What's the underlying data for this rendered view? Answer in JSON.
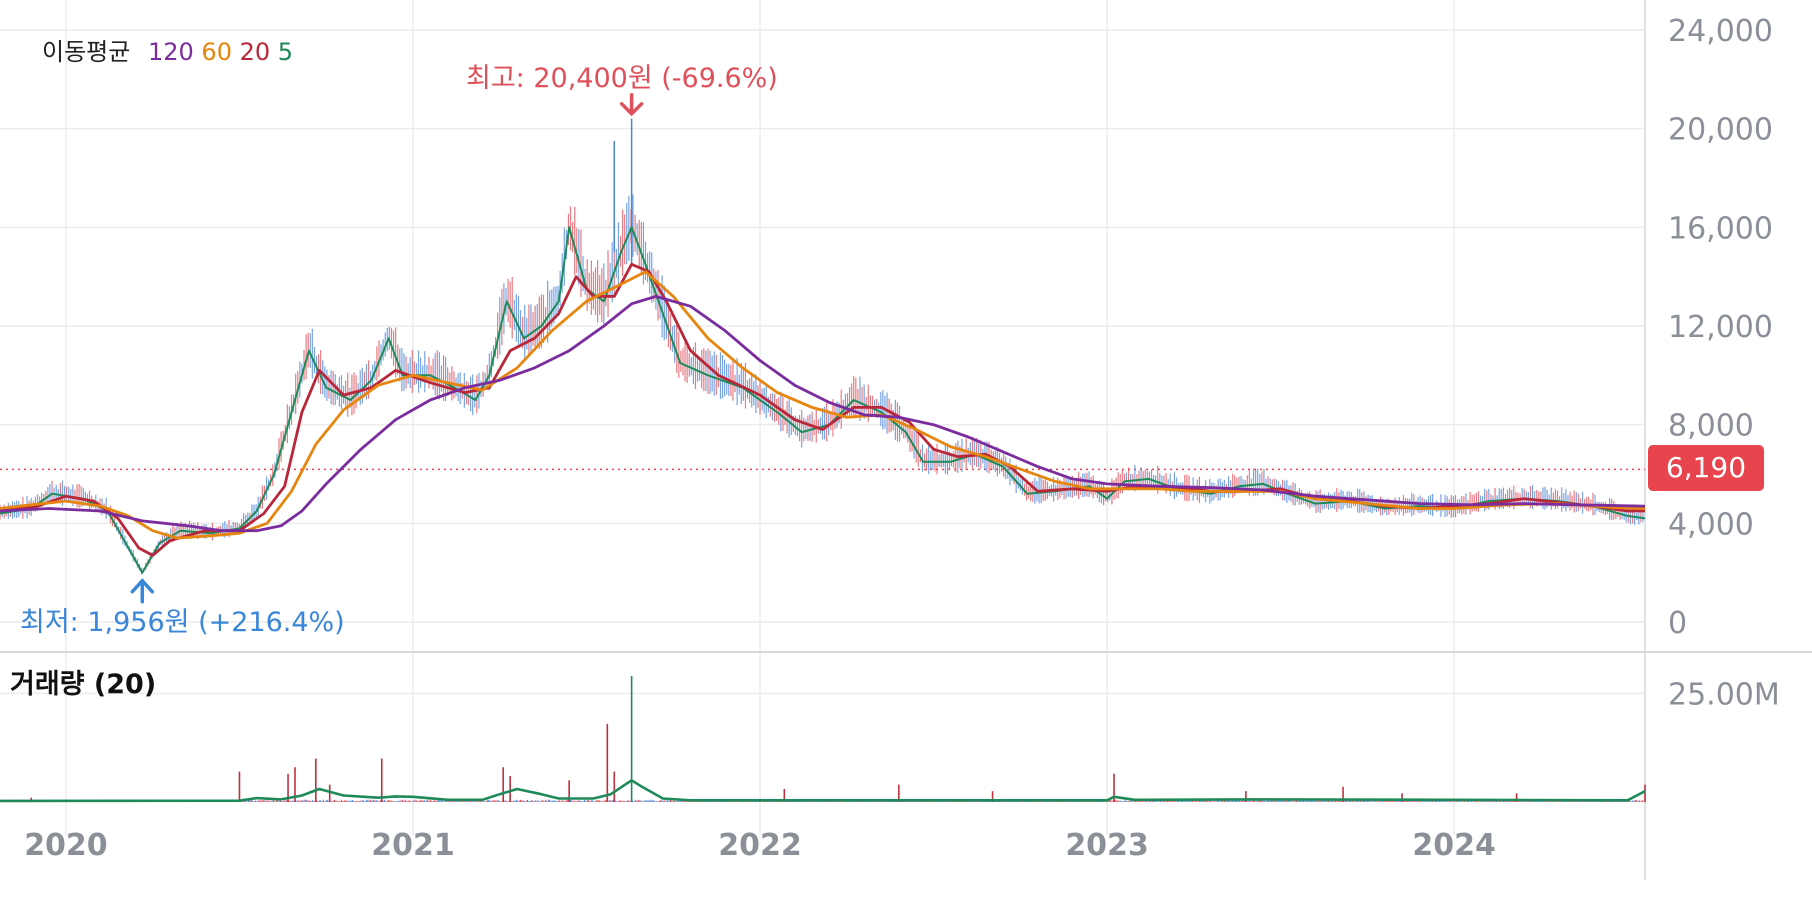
{
  "chart_data": {
    "type": "line",
    "legend": {
      "label": "이동평균",
      "items": [
        {
          "text": "120",
          "color": "#7b2d9e"
        },
        {
          "text": "60",
          "color": "#e6860f"
        },
        {
          "text": "20",
          "color": "#b8283a"
        },
        {
          "text": "5",
          "color": "#1e8a5a"
        }
      ]
    },
    "x_ticks": [
      "2020",
      "2021",
      "2022",
      "2023",
      "2024"
    ],
    "x_tick_values": [
      2020.0,
      2021.0,
      2022.0,
      2023.0,
      2024.0
    ],
    "xlim": [
      2019.81,
      2024.55
    ],
    "price_axis": {
      "ylim": [
        0,
        24000
      ],
      "ticks": [
        0,
        4000,
        8000,
        12000,
        16000,
        20000,
        24000
      ],
      "tick_labels": [
        "0",
        "4,000",
        "8,000",
        "12,000",
        "16,000",
        "20,000",
        "24,000"
      ]
    },
    "volume_axis": {
      "title": "거래량 (20)",
      "tick_labels": [
        "25.00M"
      ],
      "ticks": [
        25000000
      ],
      "ylim": [
        0,
        35000000
      ]
    },
    "current_price": {
      "value": 6190,
      "label": "6,190",
      "color": "#e8444e"
    },
    "annotations": {
      "high": {
        "text": "최고: 20,400원 (-69.6%)",
        "x": 2021.63,
        "y": 20400,
        "color": "#e0505a"
      },
      "low": {
        "text": "최저: 1,956원 (+216.4%)",
        "x": 2020.22,
        "y": 1956,
        "color": "#3a86d8"
      }
    },
    "series": [
      {
        "name": "5",
        "color": "#1e8a5a",
        "points": [
          [
            2019.81,
            4400
          ],
          [
            2019.9,
            4600
          ],
          [
            2019.96,
            5200
          ],
          [
            2020.05,
            5000
          ],
          [
            2020.12,
            4500
          ],
          [
            2020.18,
            3000
          ],
          [
            2020.22,
            2000
          ],
          [
            2020.27,
            3200
          ],
          [
            2020.33,
            3700
          ],
          [
            2020.42,
            3600
          ],
          [
            2020.5,
            3800
          ],
          [
            2020.55,
            4500
          ],
          [
            2020.6,
            6000
          ],
          [
            2020.65,
            8500
          ],
          [
            2020.7,
            11000
          ],
          [
            2020.75,
            9500
          ],
          [
            2020.82,
            9000
          ],
          [
            2020.88,
            9800
          ],
          [
            2020.93,
            11500
          ],
          [
            2020.97,
            10000
          ],
          [
            2021.05,
            10000
          ],
          [
            2021.12,
            9500
          ],
          [
            2021.18,
            9000
          ],
          [
            2021.22,
            10000
          ],
          [
            2021.27,
            13000
          ],
          [
            2021.32,
            11500
          ],
          [
            2021.37,
            12000
          ],
          [
            2021.42,
            13000
          ],
          [
            2021.45,
            16000
          ],
          [
            2021.5,
            13500
          ],
          [
            2021.55,
            13000
          ],
          [
            2021.6,
            15000
          ],
          [
            2021.63,
            16000
          ],
          [
            2021.67,
            14500
          ],
          [
            2021.72,
            12500
          ],
          [
            2021.77,
            10500
          ],
          [
            2021.85,
            10000
          ],
          [
            2021.95,
            9500
          ],
          [
            2022.05,
            8500
          ],
          [
            2022.12,
            7700
          ],
          [
            2022.2,
            8000
          ],
          [
            2022.27,
            9000
          ],
          [
            2022.35,
            8500
          ],
          [
            2022.42,
            7700
          ],
          [
            2022.47,
            6500
          ],
          [
            2022.55,
            6500
          ],
          [
            2022.62,
            6800
          ],
          [
            2022.7,
            6300
          ],
          [
            2022.77,
            5200
          ],
          [
            2022.85,
            5300
          ],
          [
            2022.95,
            5500
          ],
          [
            2023.0,
            5000
          ],
          [
            2023.05,
            5700
          ],
          [
            2023.12,
            5800
          ],
          [
            2023.2,
            5400
          ],
          [
            2023.3,
            5200
          ],
          [
            2023.38,
            5500
          ],
          [
            2023.45,
            5600
          ],
          [
            2023.52,
            5200
          ],
          [
            2023.6,
            4800
          ],
          [
            2023.7,
            4900
          ],
          [
            2023.8,
            4600
          ],
          [
            2023.9,
            4700
          ],
          [
            2024.0,
            4600
          ],
          [
            2024.1,
            4900
          ],
          [
            2024.2,
            5000
          ],
          [
            2024.3,
            4900
          ],
          [
            2024.4,
            4700
          ],
          [
            2024.5,
            4300
          ],
          [
            2024.55,
            4200
          ]
        ]
      },
      {
        "name": "20",
        "color": "#b8283a",
        "points": [
          [
            2019.81,
            4500
          ],
          [
            2019.92,
            4700
          ],
          [
            2020.0,
            5100
          ],
          [
            2020.08,
            4900
          ],
          [
            2020.15,
            4200
          ],
          [
            2020.21,
            3000
          ],
          [
            2020.25,
            2700
          ],
          [
            2020.3,
            3300
          ],
          [
            2020.4,
            3700
          ],
          [
            2020.5,
            3700
          ],
          [
            2020.57,
            4400
          ],
          [
            2020.63,
            5500
          ],
          [
            2020.68,
            8500
          ],
          [
            2020.73,
            10200
          ],
          [
            2020.8,
            9200
          ],
          [
            2020.88,
            9500
          ],
          [
            2020.95,
            10200
          ],
          [
            2021.05,
            9700
          ],
          [
            2021.15,
            9300
          ],
          [
            2021.22,
            9500
          ],
          [
            2021.28,
            11000
          ],
          [
            2021.35,
            11500
          ],
          [
            2021.42,
            12500
          ],
          [
            2021.47,
            14000
          ],
          [
            2021.52,
            13200
          ],
          [
            2021.58,
            13200
          ],
          [
            2021.63,
            14500
          ],
          [
            2021.68,
            14200
          ],
          [
            2021.73,
            13000
          ],
          [
            2021.8,
            11000
          ],
          [
            2021.88,
            10000
          ],
          [
            2022.0,
            9200
          ],
          [
            2022.1,
            8200
          ],
          [
            2022.18,
            7800
          ],
          [
            2022.27,
            8700
          ],
          [
            2022.35,
            8700
          ],
          [
            2022.43,
            8100
          ],
          [
            2022.5,
            7000
          ],
          [
            2022.57,
            6700
          ],
          [
            2022.65,
            6800
          ],
          [
            2022.72,
            6300
          ],
          [
            2022.8,
            5300
          ],
          [
            2022.9,
            5400
          ],
          [
            2023.0,
            5300
          ],
          [
            2023.08,
            5500
          ],
          [
            2023.18,
            5500
          ],
          [
            2023.3,
            5300
          ],
          [
            2023.4,
            5300
          ],
          [
            2023.5,
            5400
          ],
          [
            2023.6,
            5000
          ],
          [
            2023.7,
            4900
          ],
          [
            2023.8,
            4700
          ],
          [
            2023.9,
            4600
          ],
          [
            2024.0,
            4700
          ],
          [
            2024.1,
            4800
          ],
          [
            2024.2,
            5000
          ],
          [
            2024.3,
            4850
          ],
          [
            2024.4,
            4700
          ],
          [
            2024.5,
            4500
          ],
          [
            2024.55,
            4500
          ]
        ]
      },
      {
        "name": "60",
        "color": "#e6860f",
        "points": [
          [
            2019.81,
            4600
          ],
          [
            2019.9,
            4750
          ],
          [
            2020.0,
            4900
          ],
          [
            2020.1,
            4700
          ],
          [
            2020.18,
            4300
          ],
          [
            2020.25,
            3700
          ],
          [
            2020.32,
            3400
          ],
          [
            2020.42,
            3500
          ],
          [
            2020.5,
            3600
          ],
          [
            2020.58,
            4000
          ],
          [
            2020.65,
            5300
          ],
          [
            2020.72,
            7200
          ],
          [
            2020.8,
            8600
          ],
          [
            2020.9,
            9600
          ],
          [
            2021.0,
            10000
          ],
          [
            2021.1,
            9700
          ],
          [
            2021.2,
            9400
          ],
          [
            2021.3,
            10300
          ],
          [
            2021.4,
            11800
          ],
          [
            2021.5,
            13000
          ],
          [
            2021.6,
            13700
          ],
          [
            2021.67,
            14200
          ],
          [
            2021.75,
            13200
          ],
          [
            2021.85,
            11500
          ],
          [
            2021.95,
            10300
          ],
          [
            2022.05,
            9300
          ],
          [
            2022.15,
            8700
          ],
          [
            2022.25,
            8300
          ],
          [
            2022.35,
            8400
          ],
          [
            2022.45,
            7800
          ],
          [
            2022.55,
            7100
          ],
          [
            2022.65,
            6700
          ],
          [
            2022.75,
            6200
          ],
          [
            2022.85,
            5700
          ],
          [
            2022.95,
            5400
          ],
          [
            2023.05,
            5400
          ],
          [
            2023.15,
            5400
          ],
          [
            2023.25,
            5300
          ],
          [
            2023.4,
            5300
          ],
          [
            2023.5,
            5300
          ],
          [
            2023.6,
            5000
          ],
          [
            2023.75,
            4800
          ],
          [
            2023.9,
            4600
          ],
          [
            2024.0,
            4600
          ],
          [
            2024.15,
            4750
          ],
          [
            2024.3,
            4800
          ],
          [
            2024.45,
            4650
          ],
          [
            2024.55,
            4600
          ]
        ]
      },
      {
        "name": "120",
        "color": "#7b2d9e",
        "points": [
          [
            2019.81,
            4500
          ],
          [
            2019.95,
            4600
          ],
          [
            2020.1,
            4500
          ],
          [
            2020.22,
            4100
          ],
          [
            2020.35,
            3900
          ],
          [
            2020.45,
            3700
          ],
          [
            2020.55,
            3700
          ],
          [
            2020.62,
            3900
          ],
          [
            2020.68,
            4500
          ],
          [
            2020.75,
            5600
          ],
          [
            2020.85,
            7000
          ],
          [
            2020.95,
            8200
          ],
          [
            2021.05,
            9000
          ],
          [
            2021.15,
            9500
          ],
          [
            2021.25,
            9800
          ],
          [
            2021.35,
            10300
          ],
          [
            2021.45,
            11000
          ],
          [
            2021.55,
            12000
          ],
          [
            2021.63,
            12900
          ],
          [
            2021.7,
            13200
          ],
          [
            2021.8,
            12800
          ],
          [
            2021.9,
            11800
          ],
          [
            2022.0,
            10600
          ],
          [
            2022.1,
            9600
          ],
          [
            2022.2,
            8900
          ],
          [
            2022.3,
            8400
          ],
          [
            2022.4,
            8300
          ],
          [
            2022.5,
            8000
          ],
          [
            2022.6,
            7500
          ],
          [
            2022.7,
            6900
          ],
          [
            2022.8,
            6300
          ],
          [
            2022.9,
            5800
          ],
          [
            2023.0,
            5600
          ],
          [
            2023.15,
            5500
          ],
          [
            2023.3,
            5450
          ],
          [
            2023.45,
            5350
          ],
          [
            2023.6,
            5100
          ],
          [
            2023.75,
            4950
          ],
          [
            2023.9,
            4800
          ],
          [
            2024.05,
            4750
          ],
          [
            2024.2,
            4800
          ],
          [
            2024.35,
            4750
          ],
          [
            2024.55,
            4700
          ]
        ]
      }
    ],
    "volume": {
      "color": "#1e8a5a",
      "avg_points": [
        [
          2019.81,
          0.25
        ],
        [
          2020.5,
          0.3
        ],
        [
          2020.55,
          0.9
        ],
        [
          2020.62,
          0.6
        ],
        [
          2020.68,
          1.5
        ],
        [
          2020.73,
          3.0
        ],
        [
          2020.8,
          1.5
        ],
        [
          2020.9,
          1.0
        ],
        [
          2020.95,
          1.3
        ],
        [
          2021.0,
          1.2
        ],
        [
          2021.1,
          0.5
        ],
        [
          2021.2,
          0.5
        ],
        [
          2021.25,
          1.8
        ],
        [
          2021.3,
          3.0
        ],
        [
          2021.37,
          1.8
        ],
        [
          2021.42,
          0.8
        ],
        [
          2021.52,
          0.8
        ],
        [
          2021.57,
          1.8
        ],
        [
          2021.63,
          5.0
        ],
        [
          2021.66,
          3.5
        ],
        [
          2021.72,
          0.8
        ],
        [
          2021.8,
          0.4
        ],
        [
          2023.0,
          0.4
        ],
        [
          2023.02,
          1.2
        ],
        [
          2023.08,
          0.5
        ],
        [
          2023.4,
          0.6
        ],
        [
          2024.0,
          0.5
        ],
        [
          2024.5,
          0.4
        ],
        [
          2024.55,
          2.5
        ]
      ],
      "spikes_millions": [
        [
          2019.9,
          1.0
        ],
        [
          2020.5,
          7.0
        ],
        [
          2020.64,
          6.5
        ],
        [
          2020.66,
          8.0
        ],
        [
          2020.72,
          10.0
        ],
        [
          2020.76,
          4.0
        ],
        [
          2020.91,
          10.0
        ],
        [
          2021.26,
          8.0
        ],
        [
          2021.28,
          6.0
        ],
        [
          2021.45,
          5.0
        ],
        [
          2021.56,
          18.0
        ],
        [
          2021.58,
          7.0
        ],
        [
          2021.63,
          29.0
        ],
        [
          2022.07,
          3.0
        ],
        [
          2022.4,
          4.0
        ],
        [
          2022.67,
          2.5
        ],
        [
          2023.02,
          6.5
        ],
        [
          2023.4,
          2.5
        ],
        [
          2023.68,
          3.5
        ],
        [
          2023.85,
          2.0
        ],
        [
          2024.18,
          2.0
        ],
        [
          2024.55,
          4.0
        ]
      ]
    }
  }
}
